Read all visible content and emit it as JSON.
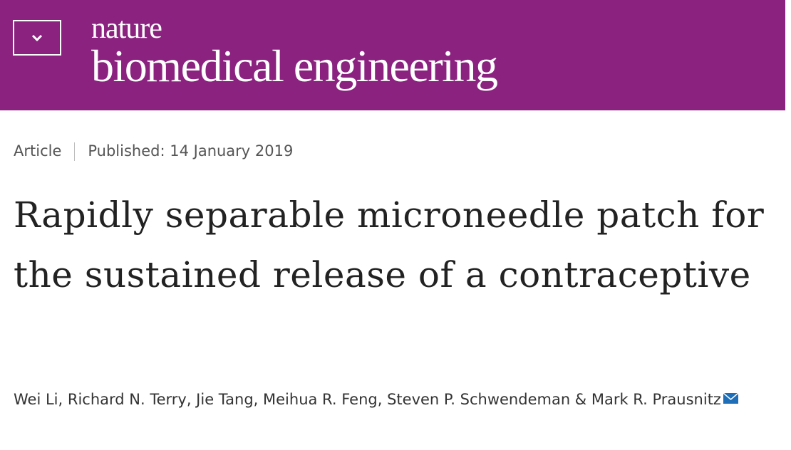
{
  "header": {
    "brand_top": "nature",
    "brand": "biomedical engineering"
  },
  "meta": {
    "type": "Article",
    "published": "Published: 14 January 2019"
  },
  "title": "Rapidly separable microneedle patch for the sustained release of a contraceptive",
  "authors": "Wei Li, Richard N. Terry, Jie Tang, Meihua R. Feng, Steven P. Schwendeman & Mark R. Prausnitz"
}
